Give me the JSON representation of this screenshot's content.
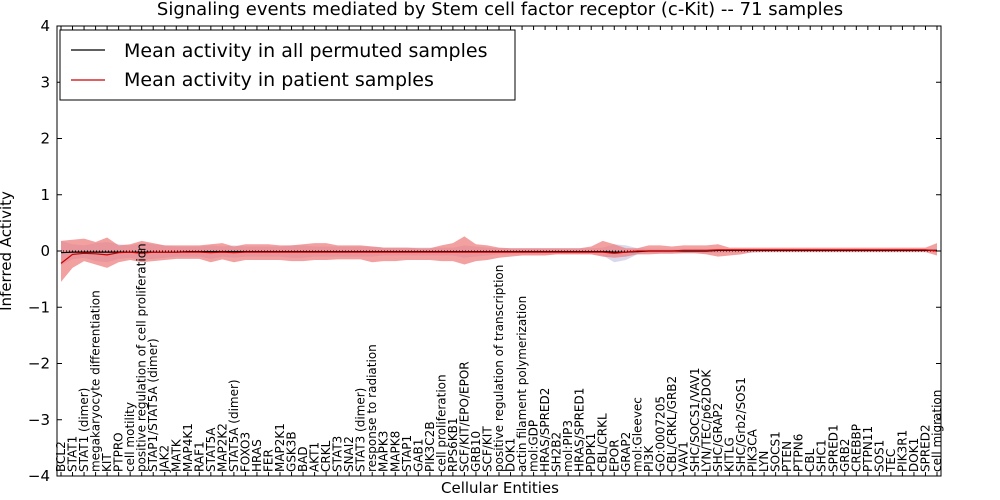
{
  "chart_data": {
    "type": "line",
    "title": "Signaling events mediated by Stem cell factor receptor (c-Kit) -- 71 samples",
    "xlabel": "Cellular Entities",
    "ylabel": "Inferred Activity",
    "ylim": [
      -4,
      4
    ],
    "yticks": [
      4,
      3,
      2,
      1,
      0,
      -1,
      -2,
      -3,
      -4
    ],
    "ytick_labels": [
      "4",
      "3",
      "2",
      "1",
      "0",
      "−1",
      "−2",
      "−3",
      "−4"
    ],
    "grid": false,
    "legend_position": "top-left",
    "colors": {
      "permuted": "#000000",
      "patient": "#cc0000",
      "patient_band": "#ee8080",
      "permuted_band": "#b8b8d8"
    },
    "categories": [
      "BCL2",
      "STAT1",
      "STAT1 (dimer)",
      "megakaryocyte differentiation",
      "KIT",
      "PTPRO",
      "cell motility",
      "positive regulation of cell proliferation",
      "STAP1/STAT5A (dimer)",
      "JAK2",
      "MATK",
      "MAP4K1",
      "RAF1",
      "STAT5A",
      "MAP2K2",
      "STAT5A (dimer)",
      "FOXO3",
      "HRAS",
      "FER",
      "MAP2K1",
      "GSK3B",
      "BAD",
      "AKT1",
      "CRKL",
      "STAT3",
      "SNAI2",
      "STAT3 (dimer)",
      "response to radiation",
      "MAPK3",
      "MAPK8",
      "STAP1",
      "GAB1",
      "PIK3C2B",
      "cell proliferation",
      "RPS6KB1",
      "SCF/KIT/EPO/EPOR",
      "GRB10",
      "SCF/KIT",
      "positive regulation of transcription",
      "DOK1",
      "actin filament polymerization",
      "mol:GDP",
      "HRAS/SPRED2",
      "SH2B2",
      "mol:PIP3",
      "HRAS/SPRED1",
      "PDPK1",
      "CBL/CRKL",
      "EPOR",
      "GRAP2",
      "mol:Gleevec",
      "PI3K",
      "GO:0007205",
      "CBL/CRKL/GRB2",
      "VAV1",
      "SHC/SOCS1/VAV1",
      "LYN/TEC/p62DOK",
      "SHC/GRAP2",
      "KITLG",
      "SHC/Grb2/SOS1",
      "PIK3CA",
      "LYN",
      "SOCS1",
      "PTEN",
      "PTPN6",
      "CBL",
      "SHC1",
      "SPRED1",
      "GRB2",
      "CREBBP",
      "PTPN11",
      "SOS1",
      "TEC",
      "PIK3R1",
      "DOK1",
      "SPRED2",
      "cell migration"
    ],
    "series": [
      {
        "name": "Mean activity in all permuted samples",
        "values": [
          -0.03,
          -0.02,
          -0.02,
          -0.02,
          -0.02,
          -0.02,
          -0.02,
          -0.02,
          -0.02,
          -0.02,
          -0.02,
          -0.01,
          -0.01,
          -0.01,
          -0.01,
          -0.01,
          -0.01,
          -0.01,
          -0.01,
          -0.01,
          -0.01,
          -0.01,
          -0.01,
          -0.01,
          -0.01,
          -0.01,
          -0.01,
          -0.01,
          -0.01,
          -0.01,
          -0.01,
          -0.01,
          -0.01,
          -0.01,
          -0.01,
          -0.01,
          -0.01,
          -0.01,
          -0.01,
          -0.01,
          -0.01,
          -0.01,
          -0.01,
          -0.01,
          -0.01,
          -0.01,
          -0.01,
          -0.01,
          -0.02,
          -0.02,
          -0.01,
          0.0,
          0.0,
          0.0,
          0.0,
          0.0,
          0.0,
          0.01,
          0.01,
          0.01,
          0.01,
          0.01,
          0.01,
          0.01,
          0.01,
          0.01,
          0.01,
          0.01,
          0.01,
          0.01,
          0.01,
          0.01,
          0.01,
          0.01,
          0.01,
          0.01,
          0.01
        ],
        "lower": [
          -0.25,
          -0.15,
          -0.12,
          -0.18,
          -0.2,
          -0.14,
          -0.12,
          -0.16,
          -0.14,
          -0.12,
          -0.1,
          -0.1,
          -0.1,
          -0.14,
          -0.1,
          -0.12,
          -0.1,
          -0.1,
          -0.1,
          -0.1,
          -0.12,
          -0.12,
          -0.1,
          -0.1,
          -0.1,
          -0.1,
          -0.1,
          -0.1,
          -0.08,
          -0.08,
          -0.08,
          -0.08,
          -0.08,
          -0.08,
          -0.08,
          -0.12,
          -0.1,
          -0.08,
          -0.06,
          -0.06,
          -0.06,
          -0.06,
          -0.06,
          -0.06,
          -0.06,
          -0.06,
          -0.06,
          -0.08,
          -0.2,
          -0.16,
          -0.06,
          -0.04,
          -0.04,
          -0.04,
          -0.04,
          -0.04,
          -0.04,
          -0.03,
          -0.03,
          -0.03,
          -0.03,
          -0.02,
          -0.02,
          -0.02,
          -0.02,
          -0.02,
          -0.02,
          -0.02,
          -0.02,
          -0.02,
          -0.02,
          -0.02,
          -0.02,
          -0.02,
          -0.02,
          -0.02,
          -0.02
        ],
        "upper": [
          0.18,
          0.12,
          0.1,
          0.14,
          0.16,
          0.12,
          0.1,
          0.14,
          0.12,
          0.1,
          0.08,
          0.08,
          0.08,
          0.1,
          0.08,
          0.1,
          0.08,
          0.08,
          0.08,
          0.08,
          0.1,
          0.1,
          0.08,
          0.08,
          0.08,
          0.08,
          0.08,
          0.08,
          0.06,
          0.06,
          0.06,
          0.06,
          0.06,
          0.06,
          0.06,
          0.1,
          0.08,
          0.06,
          0.05,
          0.05,
          0.05,
          0.05,
          0.05,
          0.05,
          0.05,
          0.05,
          0.05,
          0.06,
          0.12,
          0.1,
          0.05,
          0.04,
          0.04,
          0.04,
          0.04,
          0.04,
          0.04,
          0.04,
          0.04,
          0.04,
          0.04,
          0.04,
          0.04,
          0.04,
          0.04,
          0.04,
          0.04,
          0.04,
          0.04,
          0.04,
          0.04,
          0.04,
          0.04,
          0.04,
          0.04,
          0.04,
          0.04
        ]
      },
      {
        "name": "Mean activity in patient samples",
        "values": [
          -0.22,
          -0.06,
          -0.04,
          -0.05,
          -0.07,
          -0.03,
          -0.02,
          -0.04,
          -0.02,
          -0.02,
          -0.02,
          -0.02,
          -0.02,
          -0.03,
          -0.02,
          -0.03,
          -0.02,
          -0.02,
          -0.02,
          -0.02,
          -0.02,
          -0.02,
          -0.02,
          -0.02,
          -0.02,
          -0.02,
          -0.02,
          -0.02,
          -0.02,
          -0.02,
          -0.02,
          -0.02,
          -0.02,
          -0.02,
          -0.02,
          -0.02,
          -0.02,
          -0.02,
          -0.02,
          -0.02,
          -0.02,
          -0.02,
          -0.02,
          -0.02,
          -0.02,
          -0.02,
          -0.02,
          -0.02,
          -0.04,
          -0.02,
          0.0,
          0.0,
          0.0,
          0.0,
          0.01,
          0.01,
          0.01,
          0.02,
          0.02,
          0.02,
          0.02,
          0.02,
          0.02,
          0.02,
          0.02,
          0.02,
          0.02,
          0.02,
          0.02,
          0.02,
          0.02,
          0.02,
          0.02,
          0.02,
          0.02,
          0.02,
          0.0
        ],
        "lower": [
          -0.55,
          -0.3,
          -0.18,
          -0.24,
          -0.3,
          -0.2,
          -0.16,
          -0.2,
          -0.18,
          -0.16,
          -0.14,
          -0.14,
          -0.14,
          -0.2,
          -0.15,
          -0.2,
          -0.16,
          -0.16,
          -0.16,
          -0.16,
          -0.18,
          -0.18,
          -0.16,
          -0.16,
          -0.15,
          -0.15,
          -0.15,
          -0.2,
          -0.18,
          -0.18,
          -0.16,
          -0.16,
          -0.16,
          -0.18,
          -0.18,
          -0.24,
          -0.18,
          -0.16,
          -0.12,
          -0.1,
          -0.08,
          -0.08,
          -0.08,
          -0.06,
          -0.06,
          -0.06,
          -0.06,
          -0.1,
          -0.12,
          -0.1,
          -0.06,
          -0.06,
          -0.05,
          -0.05,
          -0.04,
          -0.04,
          -0.06,
          -0.1,
          -0.08,
          -0.06,
          -0.02,
          -0.02,
          -0.02,
          -0.02,
          -0.02,
          -0.02,
          -0.02,
          -0.02,
          -0.02,
          -0.02,
          -0.02,
          -0.02,
          -0.02,
          -0.02,
          -0.02,
          -0.02,
          -0.08
        ],
        "upper": [
          0.18,
          0.2,
          0.22,
          0.16,
          0.24,
          0.1,
          0.12,
          0.18,
          0.14,
          0.1,
          0.1,
          0.1,
          0.1,
          0.12,
          0.14,
          0.08,
          0.12,
          0.12,
          0.12,
          0.1,
          0.1,
          0.12,
          0.14,
          0.14,
          0.1,
          0.1,
          0.1,
          0.08,
          0.06,
          0.06,
          0.06,
          0.05,
          0.05,
          0.1,
          0.14,
          0.26,
          0.12,
          0.1,
          0.06,
          0.05,
          0.05,
          0.05,
          0.05,
          0.05,
          0.05,
          0.05,
          0.08,
          0.18,
          0.12,
          0.05,
          0.05,
          0.1,
          0.1,
          0.08,
          0.1,
          0.1,
          0.1,
          0.12,
          0.06,
          0.06,
          0.06,
          0.06,
          0.06,
          0.06,
          0.06,
          0.06,
          0.06,
          0.06,
          0.06,
          0.06,
          0.06,
          0.06,
          0.06,
          0.06,
          0.06,
          0.06,
          0.14
        ]
      }
    ]
  }
}
